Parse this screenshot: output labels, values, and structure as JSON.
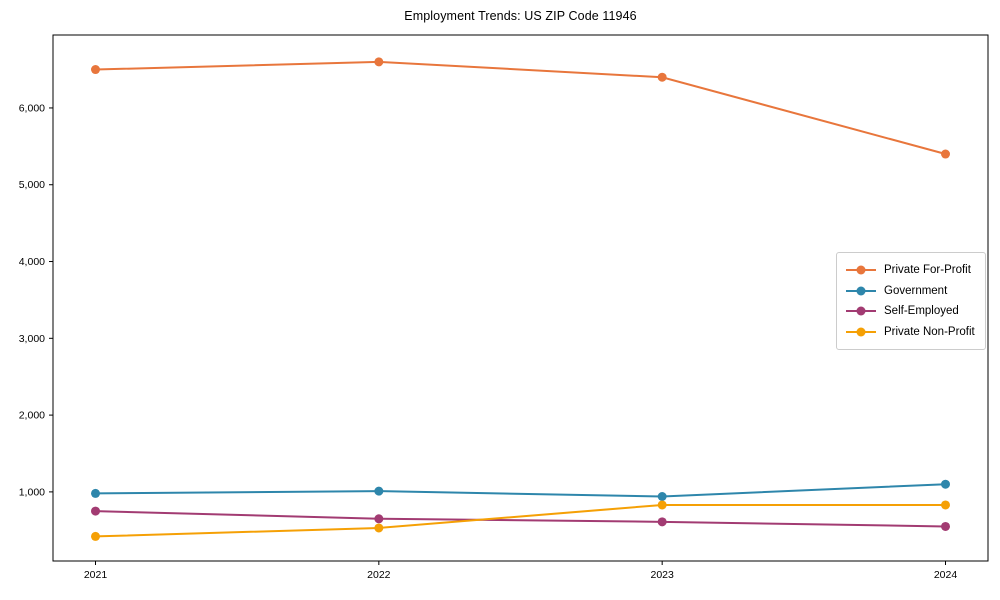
{
  "chart_data": {
    "type": "line",
    "title": "Employment Trends: US ZIP Code 11946",
    "xlabel": "",
    "ylabel": "",
    "x": [
      2021,
      2022,
      2023,
      2024
    ],
    "xtick_labels": [
      "2021",
      "2022",
      "2023",
      "2024"
    ],
    "yticks": [
      {
        "value": 1000,
        "label": "1,000"
      },
      {
        "value": 2000,
        "label": "2,000"
      },
      {
        "value": 3000,
        "label": "3,000"
      },
      {
        "value": 4000,
        "label": "4,000"
      },
      {
        "value": 5000,
        "label": "5,000"
      },
      {
        "value": 6000,
        "label": "6,000"
      }
    ],
    "xlim": [
      2020.85,
      2024.15
    ],
    "ylim": [
      100,
      6950
    ],
    "grid": false,
    "legend_position": "center-right",
    "axis_color": "#000000",
    "background_color": "#ffffff",
    "series": [
      {
        "name": "Private For-Profit",
        "color": "#E8763C",
        "values": [
          6500,
          6600,
          6400,
          5400
        ]
      },
      {
        "name": "Government",
        "color": "#2E86AB",
        "values": [
          980,
          1010,
          940,
          1100
        ]
      },
      {
        "name": "Self-Employed",
        "color": "#A23B72",
        "values": [
          750,
          650,
          610,
          550
        ]
      },
      {
        "name": "Private Non-Profit",
        "color": "#F5A005",
        "values": [
          420,
          530,
          830,
          830
        ]
      }
    ]
  }
}
